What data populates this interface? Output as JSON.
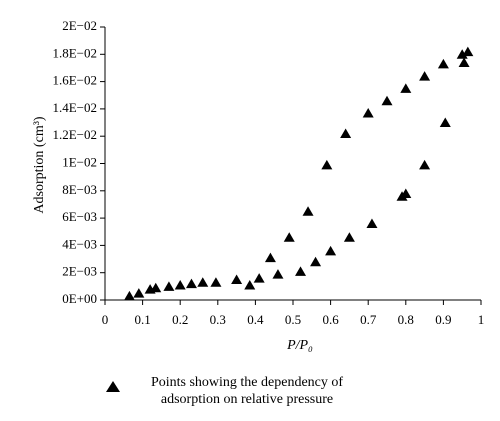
{
  "chart_data": {
    "type": "scatter",
    "x_label": "P/P₀",
    "y_label": "Adsorption (cm³)",
    "x": [
      0.065,
      0.09,
      0.12,
      0.135,
      0.17,
      0.2,
      0.23,
      0.26,
      0.295,
      0.35,
      0.385,
      0.41,
      0.44,
      0.46,
      0.49,
      0.52,
      0.54,
      0.56,
      0.59,
      0.6,
      0.64,
      0.65,
      0.7,
      0.71,
      0.75,
      0.79,
      0.8,
      0.8,
      0.85,
      0.85,
      0.9,
      0.905,
      0.95,
      0.955,
      0.965
    ],
    "series": [
      {
        "name": "Points showing the dependency of adsorption on relative pressure",
        "color": "#000000",
        "values": [
          0.0003,
          0.0005,
          0.0008,
          0.0009,
          0.001,
          0.0011,
          0.0012,
          0.0013,
          0.0013,
          0.0015,
          0.0011,
          0.0016,
          0.0031,
          0.0019,
          0.0046,
          0.0021,
          0.0065,
          0.0028,
          0.0099,
          0.0036,
          0.0122,
          0.0046,
          0.0137,
          0.0056,
          0.0146,
          0.0076,
          0.0078,
          0.0155,
          0.0099,
          0.0164,
          0.0173,
          0.013,
          0.018,
          0.0174,
          0.0182
        ]
      }
    ],
    "xlim": [
      0,
      1
    ],
    "xticks": [
      0,
      0.1,
      0.2,
      0.3,
      0.4,
      0.5,
      0.6,
      0.7,
      0.8,
      0.9,
      1
    ],
    "ylim": [
      0,
      0.02
    ],
    "yticks": [
      {
        "value": 0,
        "label": "0E+00"
      },
      {
        "value": 0.002,
        "label": "2E−03"
      },
      {
        "value": 0.004,
        "label": "4E−03"
      },
      {
        "value": 0.006,
        "label": "6E−03"
      },
      {
        "value": 0.008,
        "label": "8E−03"
      },
      {
        "value": 0.01,
        "label": "1E−02"
      },
      {
        "value": 0.012,
        "label": "1.2E−02"
      },
      {
        "value": 0.014,
        "label": "1.4E−02"
      },
      {
        "value": 0.016,
        "label": "1.6E−02"
      },
      {
        "value": 0.018,
        "label": "1.8E−02"
      },
      {
        "value": 0.02,
        "label": "2E−02"
      }
    ],
    "grid": false
  }
}
